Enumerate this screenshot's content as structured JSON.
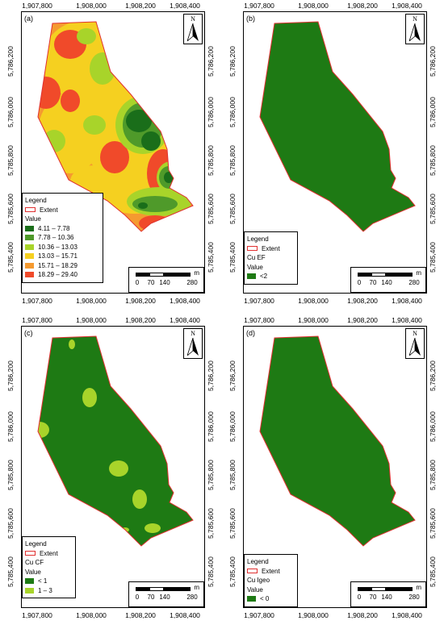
{
  "x_ticks": [
    "1,907,800",
    "1,908,000",
    "1,908,200",
    "1,908,400"
  ],
  "y_ticks": [
    "5,786,200",
    "5,786,000",
    "5,785,800",
    "5,785,600",
    "5,785,400"
  ],
  "north_label": "N",
  "scale": {
    "unit": "m",
    "labels": [
      "0",
      "70",
      "140",
      "280"
    ]
  },
  "colors": {
    "extent_outline": "#e03030",
    "class1_dark_green": "#1a6e1a",
    "class2_green": "#4f9a2a",
    "class3_light_green": "#a8d42a",
    "class4_yellow": "#f5d020",
    "class5_orange": "#f59a30",
    "class6_red": "#f04a2a",
    "uniform_green": "#1e7a14"
  },
  "panels": [
    {
      "label": "(a)",
      "legend": {
        "title": "Legend",
        "extent_label": "Extent",
        "value_title": "Value",
        "items": [
          {
            "label": "4.11 – 7.78",
            "color": "#1a6e1a"
          },
          {
            "label": "7.78 – 10.36",
            "color": "#4f9a2a"
          },
          {
            "label": "10.36 – 13.03",
            "color": "#a8d42a"
          },
          {
            "label": "13.03 – 15.71",
            "color": "#f5d020"
          },
          {
            "label": "15.71 – 18.29",
            "color": "#f59a30"
          },
          {
            "label": "18.29 – 29.40",
            "color": "#f04a2a"
          }
        ]
      }
    },
    {
      "label": "(b)",
      "legend": {
        "title": "Legend",
        "extent_label": "Extent",
        "layer_name": "Cu EF",
        "value_title": "Value",
        "items": [
          {
            "label": "<2",
            "color": "#1e7a14"
          }
        ]
      }
    },
    {
      "label": "(c)",
      "legend": {
        "title": "Legend",
        "extent_label": "Extent",
        "layer_name": "Cu CF",
        "value_title": "Value",
        "items": [
          {
            "label": "< 1",
            "color": "#1e7a14"
          },
          {
            "label": "1 – 3",
            "color": "#a8d42a"
          }
        ]
      }
    },
    {
      "label": "(d)",
      "legend": {
        "title": "Legend",
        "extent_label": "Extent",
        "layer_name": "Cu Igeo",
        "value_title": "Value",
        "items": [
          {
            "label": "< 0",
            "color": "#1e7a14"
          }
        ]
      }
    }
  ]
}
